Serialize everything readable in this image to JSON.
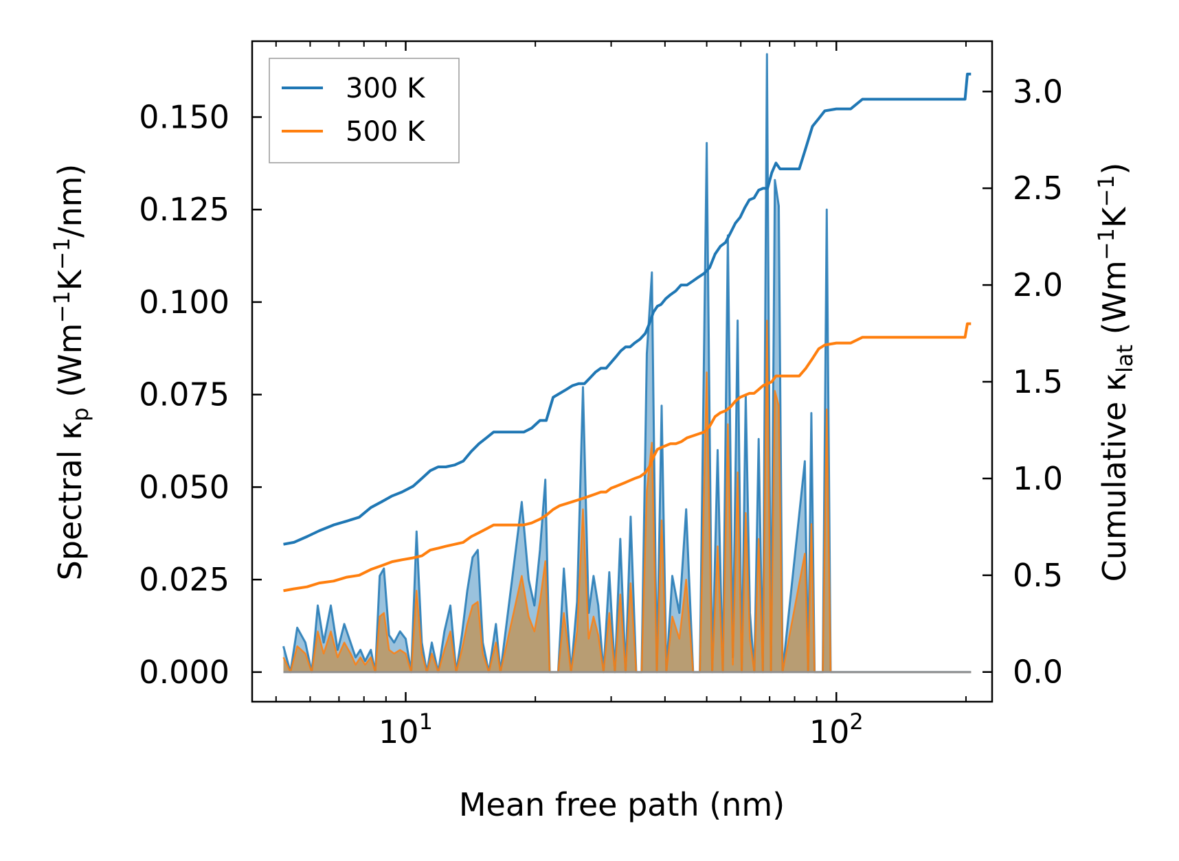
{
  "chart_data": {
    "type": "line",
    "title": "",
    "xlabel": "Mean free path (nm)",
    "ylabel_left": {
      "main": "Spectral κ",
      "sub": "p",
      "unit_open": " (Wm",
      "sup1": "−1",
      "mid": "K",
      "sup2": "−1",
      "unit_close": "/nm)"
    },
    "ylabel_right": {
      "main": "Cumulative κ",
      "sub": "lat",
      "unit_open": " (Wm",
      "sup1": "−1",
      "mid": "K",
      "sup2": "−1",
      "unit_close": ")"
    },
    "xscale": "log",
    "xlim": [
      4.4,
      230
    ],
    "ylim_left": [
      -0.008,
      0.1705
    ],
    "ylim_right": [
      -0.1535,
      3.26
    ],
    "x_ticks": [
      {
        "value": 10,
        "base": "10",
        "exp": "1"
      },
      {
        "value": 100,
        "base": "10",
        "exp": "2"
      }
    ],
    "yticks_left": [
      "0.000",
      "0.025",
      "0.050",
      "0.075",
      "0.100",
      "0.125",
      "0.150"
    ],
    "yticks_right": [
      "0.0",
      "0.5",
      "1.0",
      "1.5",
      "2.0",
      "2.5",
      "3.0"
    ],
    "legend": {
      "position": "top-left",
      "entries": [
        "300 K",
        "500 K"
      ]
    },
    "colors": {
      "300 K": "#1f77b4",
      "500 K": "#ff7f0e",
      "fill_overlap": "#b59a74"
    },
    "series": [
      {
        "name": "300 K",
        "kind": "spectral",
        "axis": "left",
        "x": [
          5.2,
          5.4,
          5.6,
          5.85,
          6.05,
          6.25,
          6.45,
          6.7,
          6.95,
          7.2,
          7.45,
          7.65,
          7.85,
          8.05,
          8.3,
          8.5,
          8.7,
          8.9,
          9.15,
          9.4,
          9.7,
          10.0,
          10.3,
          10.6,
          10.9,
          11.2,
          11.5,
          11.9,
          12.3,
          12.7,
          13.1,
          13.5,
          13.9,
          14.3,
          14.7,
          15.1,
          15.6,
          16.2,
          16.6,
          18.6,
          19.3,
          19.9,
          20.5,
          21.1,
          21.6,
          22.1,
          22.6,
          23.3,
          24.2,
          25.0,
          25.8,
          26.6,
          27.3,
          28.0,
          28.8,
          29.7,
          30.6,
          31.5,
          32.4,
          33.3,
          34.3,
          35.3,
          36.3,
          37.3,
          38.3,
          39.3,
          40.3,
          41.6,
          43.2,
          44.8,
          46.5,
          48.2,
          50.0,
          51.5,
          53.0,
          54.5,
          56.0,
          57.5,
          59.0,
          60.3,
          61.6,
          63.0,
          64.5,
          66.0,
          67.5,
          69.0,
          70.5,
          72.0,
          73.5,
          75.0,
          84.5,
          86.0,
          87.5,
          89.0,
          93.0,
          95.0,
          97.0,
          112.0,
          113.8,
          115.6,
          200.0,
          202.5,
          205.5
        ],
        "values": [
          0.007,
          0.0,
          0.012,
          0.008,
          0.0,
          0.018,
          0.008,
          0.018,
          0.006,
          0.013,
          0.008,
          0.004,
          0.006,
          0.003,
          0.006,
          0.0,
          0.026,
          0.028,
          0.01,
          0.008,
          0.011,
          0.009,
          0.0,
          0.038,
          0.008,
          0.0,
          0.008,
          0.0,
          0.011,
          0.018,
          0.0,
          0.01,
          0.022,
          0.031,
          0.033,
          0.008,
          0.0,
          0.013,
          0.0,
          0.046,
          0.025,
          0.018,
          0.033,
          0.052,
          0.0,
          0.0,
          0.0,
          0.028,
          0.0,
          0.019,
          0.077,
          0.016,
          0.026,
          0.018,
          0.0,
          0.027,
          0.0,
          0.036,
          0.0,
          0.042,
          0.0,
          0.0,
          0.086,
          0.108,
          0.0,
          0.072,
          0.0,
          0.026,
          0.016,
          0.044,
          0.0,
          0.0,
          0.143,
          0.0,
          0.06,
          0.0,
          0.118,
          0.004,
          0.095,
          0.0,
          0.075,
          0.016,
          0.0,
          0.063,
          0.0,
          0.167,
          0.0,
          0.133,
          0.126,
          0.0,
          0.057,
          0.0,
          0.07,
          0.0,
          0.0,
          0.125,
          0.0,
          0.0,
          0.0,
          0.0,
          0.0,
          0.0,
          0.0
        ]
      },
      {
        "name": "500 K",
        "kind": "spectral",
        "axis": "left",
        "x": [
          5.2,
          5.4,
          5.6,
          5.85,
          6.05,
          6.25,
          6.45,
          6.7,
          6.95,
          7.2,
          7.45,
          7.65,
          7.85,
          8.05,
          8.3,
          8.5,
          8.7,
          8.9,
          9.15,
          9.4,
          9.7,
          10.0,
          10.3,
          10.6,
          10.9,
          11.2,
          11.5,
          11.9,
          12.3,
          12.7,
          13.1,
          13.5,
          13.9,
          14.3,
          14.7,
          15.1,
          15.6,
          16.2,
          16.6,
          18.6,
          19.3,
          19.9,
          20.5,
          21.1,
          21.6,
          22.1,
          22.6,
          23.3,
          24.2,
          25.0,
          25.8,
          26.6,
          27.3,
          28.0,
          28.8,
          29.7,
          30.6,
          31.5,
          32.4,
          33.3,
          34.3,
          35.3,
          36.3,
          37.3,
          38.3,
          39.3,
          40.3,
          41.6,
          43.2,
          44.8,
          46.5,
          48.2,
          50.0,
          51.5,
          53.0,
          54.5,
          56.0,
          57.5,
          59.0,
          60.3,
          61.6,
          63.0,
          64.5,
          66.0,
          67.5,
          69.0,
          70.5,
          72.0,
          73.5,
          75.0,
          84.5,
          86.0,
          87.5,
          89.0,
          93.0,
          95.0,
          97.0,
          112.0,
          113.8,
          115.6,
          200.0,
          202.5,
          205.5
        ],
        "values": [
          0.004,
          0.0,
          0.007,
          0.005,
          0.0,
          0.011,
          0.005,
          0.011,
          0.004,
          0.008,
          0.005,
          0.002,
          0.004,
          0.002,
          0.004,
          0.0,
          0.015,
          0.016,
          0.006,
          0.005,
          0.006,
          0.005,
          0.0,
          0.022,
          0.005,
          0.0,
          0.005,
          0.0,
          0.006,
          0.011,
          0.0,
          0.006,
          0.013,
          0.018,
          0.019,
          0.005,
          0.0,
          0.008,
          0.0,
          0.026,
          0.015,
          0.011,
          0.019,
          0.03,
          0.0,
          0.0,
          0.0,
          0.016,
          0.0,
          0.011,
          0.044,
          0.009,
          0.015,
          0.01,
          0.0,
          0.016,
          0.0,
          0.021,
          0.0,
          0.024,
          0.0,
          0.0,
          0.049,
          0.062,
          0.0,
          0.041,
          0.0,
          0.015,
          0.009,
          0.025,
          0.0,
          0.0,
          0.081,
          0.0,
          0.034,
          0.0,
          0.067,
          0.002,
          0.054,
          0.0,
          0.043,
          0.009,
          0.0,
          0.036,
          0.0,
          0.095,
          0.0,
          0.076,
          0.072,
          0.0,
          0.032,
          0.0,
          0.04,
          0.0,
          0.0,
          0.071,
          0.0,
          0.0,
          0.0,
          0.0,
          0.0,
          0.0,
          0.0
        ]
      },
      {
        "name": "300 K",
        "kind": "cumulative",
        "axis": "right",
        "x": [
          5.2,
          5.5,
          5.9,
          6.3,
          6.8,
          7.3,
          7.8,
          8.3,
          8.8,
          9.3,
          9.8,
          10.4,
          10.9,
          11.4,
          11.9,
          12.4,
          13.0,
          13.6,
          14.2,
          14.8,
          15.4,
          16.0,
          17.5,
          18.8,
          19.6,
          20.5,
          21.2,
          22.0,
          22.8,
          23.6,
          24.4,
          25.2,
          26.0,
          26.8,
          27.6,
          28.4,
          29.2,
          30.0,
          30.8,
          31.6,
          32.4,
          33.2,
          34.0,
          35.0,
          36.0,
          36.8,
          37.6,
          38.4,
          39.2,
          40.2,
          41.2,
          42.4,
          43.6,
          45.0,
          46.4,
          47.8,
          49.3,
          50.8,
          52.3,
          53.8,
          55.3,
          56.8,
          58.3,
          59.8,
          61.3,
          62.8,
          64.4,
          66.0,
          67.6,
          69.2,
          70.8,
          72.4,
          74.0,
          82.0,
          85.0,
          88.0,
          91.0,
          94.0,
          100.0,
          108.0,
          115.0,
          123.0,
          140.0,
          160.0,
          180.0,
          199.0,
          201.5,
          205.5
        ],
        "values": [
          0.66,
          0.67,
          0.7,
          0.73,
          0.76,
          0.78,
          0.8,
          0.85,
          0.88,
          0.91,
          0.93,
          0.96,
          1.0,
          1.04,
          1.06,
          1.06,
          1.07,
          1.09,
          1.14,
          1.18,
          1.21,
          1.24,
          1.24,
          1.24,
          1.26,
          1.3,
          1.3,
          1.42,
          1.44,
          1.46,
          1.48,
          1.49,
          1.49,
          1.52,
          1.55,
          1.57,
          1.57,
          1.6,
          1.63,
          1.66,
          1.68,
          1.68,
          1.7,
          1.72,
          1.75,
          1.8,
          1.86,
          1.89,
          1.9,
          1.93,
          1.95,
          1.97,
          2.0,
          2.0,
          2.02,
          2.04,
          2.06,
          2.09,
          2.16,
          2.2,
          2.22,
          2.27,
          2.32,
          2.35,
          2.4,
          2.44,
          2.45,
          2.49,
          2.5,
          2.5,
          2.58,
          2.63,
          2.6,
          2.6,
          2.71,
          2.82,
          2.86,
          2.9,
          2.91,
          2.91,
          2.96,
          2.96,
          2.96,
          2.96,
          2.96,
          2.96,
          3.09,
          3.09
        ]
      },
      {
        "name": "500 K",
        "kind": "cumulative",
        "axis": "right",
        "x": [
          5.2,
          5.5,
          5.9,
          6.3,
          6.8,
          7.3,
          7.8,
          8.3,
          8.8,
          9.3,
          9.8,
          10.4,
          10.9,
          11.4,
          11.9,
          12.4,
          13.0,
          13.6,
          14.2,
          14.8,
          15.4,
          16.0,
          17.5,
          18.8,
          19.6,
          20.5,
          21.2,
          22.0,
          22.8,
          23.6,
          24.4,
          25.2,
          26.0,
          26.8,
          27.6,
          28.4,
          29.2,
          30.0,
          30.8,
          31.6,
          32.4,
          33.2,
          34.0,
          35.0,
          36.0,
          36.8,
          37.6,
          38.4,
          39.2,
          40.2,
          41.2,
          42.4,
          43.6,
          45.0,
          46.4,
          47.8,
          49.3,
          50.8,
          52.3,
          53.8,
          55.3,
          56.8,
          58.3,
          59.8,
          61.3,
          62.8,
          64.4,
          66.0,
          67.6,
          69.2,
          70.8,
          72.4,
          74.0,
          82.0,
          85.0,
          88.0,
          91.0,
          94.0,
          100.0,
          108.0,
          115.0,
          123.0,
          140.0,
          160.0,
          180.0,
          199.0,
          201.5,
          205.5
        ],
        "values": [
          0.42,
          0.43,
          0.44,
          0.46,
          0.47,
          0.49,
          0.5,
          0.53,
          0.55,
          0.57,
          0.58,
          0.59,
          0.6,
          0.63,
          0.64,
          0.65,
          0.66,
          0.67,
          0.7,
          0.72,
          0.74,
          0.76,
          0.76,
          0.76,
          0.77,
          0.79,
          0.81,
          0.84,
          0.86,
          0.87,
          0.88,
          0.89,
          0.9,
          0.91,
          0.92,
          0.93,
          0.93,
          0.95,
          0.96,
          0.97,
          0.98,
          0.99,
          1.0,
          1.01,
          1.03,
          1.06,
          1.11,
          1.15,
          1.16,
          1.17,
          1.18,
          1.18,
          1.19,
          1.21,
          1.22,
          1.23,
          1.24,
          1.27,
          1.32,
          1.34,
          1.35,
          1.37,
          1.4,
          1.42,
          1.43,
          1.44,
          1.44,
          1.46,
          1.48,
          1.49,
          1.5,
          1.53,
          1.53,
          1.53,
          1.57,
          1.62,
          1.67,
          1.69,
          1.7,
          1.7,
          1.73,
          1.73,
          1.73,
          1.73,
          1.73,
          1.73,
          1.8,
          1.8
        ]
      }
    ]
  }
}
